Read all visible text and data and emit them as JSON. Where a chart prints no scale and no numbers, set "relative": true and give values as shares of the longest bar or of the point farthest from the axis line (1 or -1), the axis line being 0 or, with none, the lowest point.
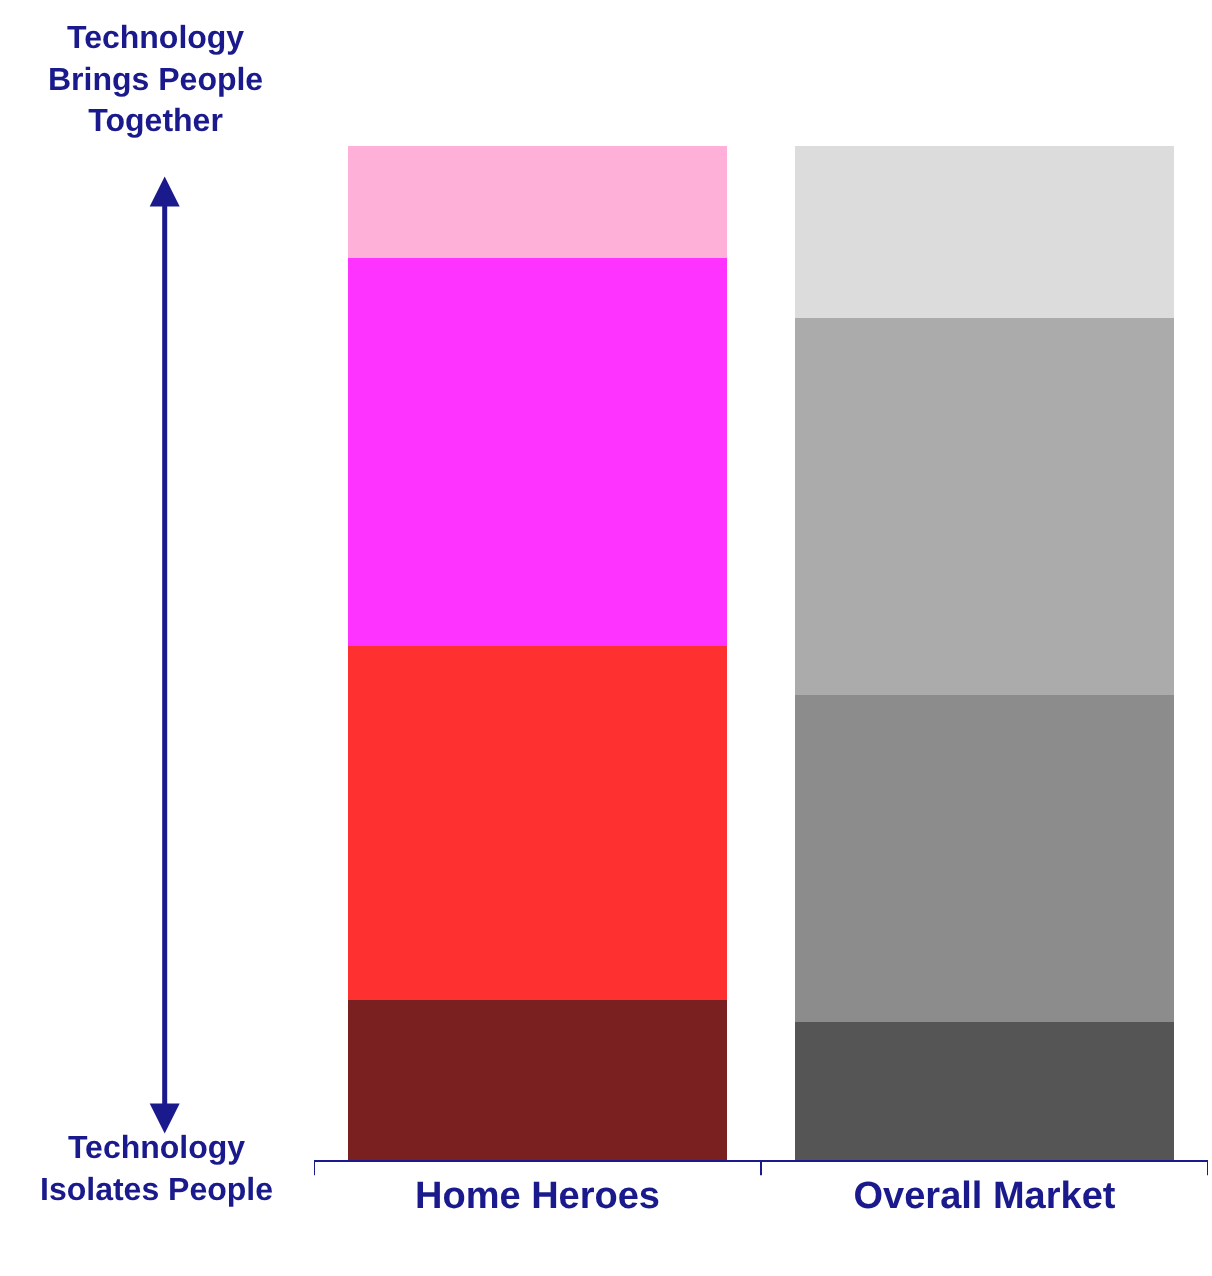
{
  "chart_data": {
    "type": "bar",
    "stacked": true,
    "relative": true,
    "categories": [
      "Home Heroes",
      "Overall Market"
    ],
    "series": [
      {
        "colors": [
          "#7a2020",
          "#555555"
        ],
        "values": [
          0.158,
          0.136
        ]
      },
      {
        "colors": [
          "#ff3030",
          "#8c8c8c"
        ],
        "values": [
          0.349,
          0.323
        ]
      },
      {
        "colors": [
          "#ff33ff",
          "#ababab"
        ],
        "values": [
          0.383,
          0.371
        ]
      },
      {
        "colors": [
          "#ffb0d8",
          "#dcdcdc"
        ],
        "values": [
          0.11,
          0.17
        ]
      }
    ],
    "annotations": [
      "Technology\nBrings People\nTogether",
      "Technology\nIsolates People"
    ]
  }
}
